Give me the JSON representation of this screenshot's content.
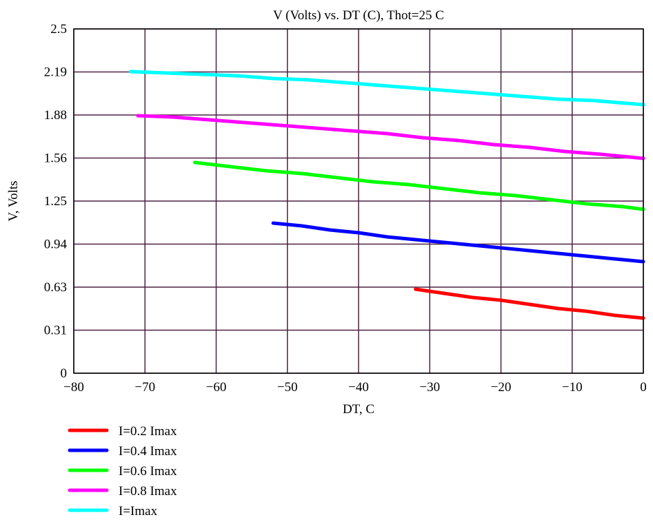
{
  "chart_data": {
    "type": "line",
    "title": "V (Volts) vs. DT (C), Thot=25 C",
    "xlabel": "DT, C",
    "ylabel": "V, Volts",
    "xlim": [
      -80,
      0
    ],
    "ylim": [
      0,
      2.5
    ],
    "x_ticks": [
      -80,
      -70,
      -60,
      -50,
      -40,
      -30,
      -20,
      -10,
      0
    ],
    "x_tick_labels": [
      "−80",
      "−70",
      "−60",
      "−50",
      "−40",
      "−30",
      "−20",
      "−10",
      "0"
    ],
    "y_ticks": [
      0,
      0.3125,
      0.625,
      0.9375,
      1.25,
      1.5625,
      1.875,
      2.1875,
      2.5
    ],
    "y_tick_labels": [
      "0",
      "0.31",
      "0.63",
      "0.94",
      "1.25",
      "1.56",
      "1.88",
      "2.19",
      "2.5"
    ],
    "grid": true,
    "legend_position": "bottom-left",
    "series": [
      {
        "name": "I=0.2 Imax",
        "color": "#ff0000",
        "x": [
          -32,
          -28,
          -24,
          -20,
          -16,
          -12,
          -8,
          -4,
          0
        ],
        "y": [
          0.61,
          0.58,
          0.55,
          0.53,
          0.5,
          0.47,
          0.45,
          0.42,
          0.4
        ]
      },
      {
        "name": "I=0.4 Imax",
        "color": "#0000ff",
        "x": [
          -52,
          -48,
          -44,
          -40,
          -36,
          -32,
          -28,
          -24,
          -20,
          -16,
          -12,
          -8,
          -4,
          0
        ],
        "y": [
          1.09,
          1.07,
          1.04,
          1.02,
          0.99,
          0.97,
          0.95,
          0.93,
          0.91,
          0.89,
          0.87,
          0.85,
          0.83,
          0.81
        ]
      },
      {
        "name": "I=0.6 Imax",
        "color": "#00ff00",
        "x": [
          -63,
          -58,
          -53,
          -48,
          -43,
          -38,
          -33,
          -28,
          -23,
          -18,
          -13,
          -8,
          -3,
          0
        ],
        "y": [
          1.53,
          1.5,
          1.47,
          1.45,
          1.42,
          1.39,
          1.37,
          1.34,
          1.31,
          1.29,
          1.26,
          1.23,
          1.21,
          1.19
        ]
      },
      {
        "name": "I=0.8 Imax",
        "color": "#ff00ff",
        "x": [
          -71,
          -66,
          -61,
          -56,
          -51,
          -46,
          -41,
          -36,
          -31,
          -26,
          -21,
          -16,
          -11,
          -6,
          0
        ],
        "y": [
          1.87,
          1.86,
          1.84,
          1.82,
          1.8,
          1.78,
          1.76,
          1.74,
          1.71,
          1.69,
          1.66,
          1.64,
          1.61,
          1.59,
          1.56
        ]
      },
      {
        "name": "I=Imax",
        "color": "#00ffff",
        "x": [
          -72,
          -67,
          -62,
          -57,
          -52,
          -47,
          -42,
          -37,
          -32,
          -27,
          -22,
          -17,
          -12,
          -7,
          0
        ],
        "y": [
          2.19,
          2.18,
          2.17,
          2.16,
          2.14,
          2.13,
          2.11,
          2.09,
          2.07,
          2.05,
          2.03,
          2.01,
          1.99,
          1.98,
          1.95
        ]
      }
    ]
  }
}
